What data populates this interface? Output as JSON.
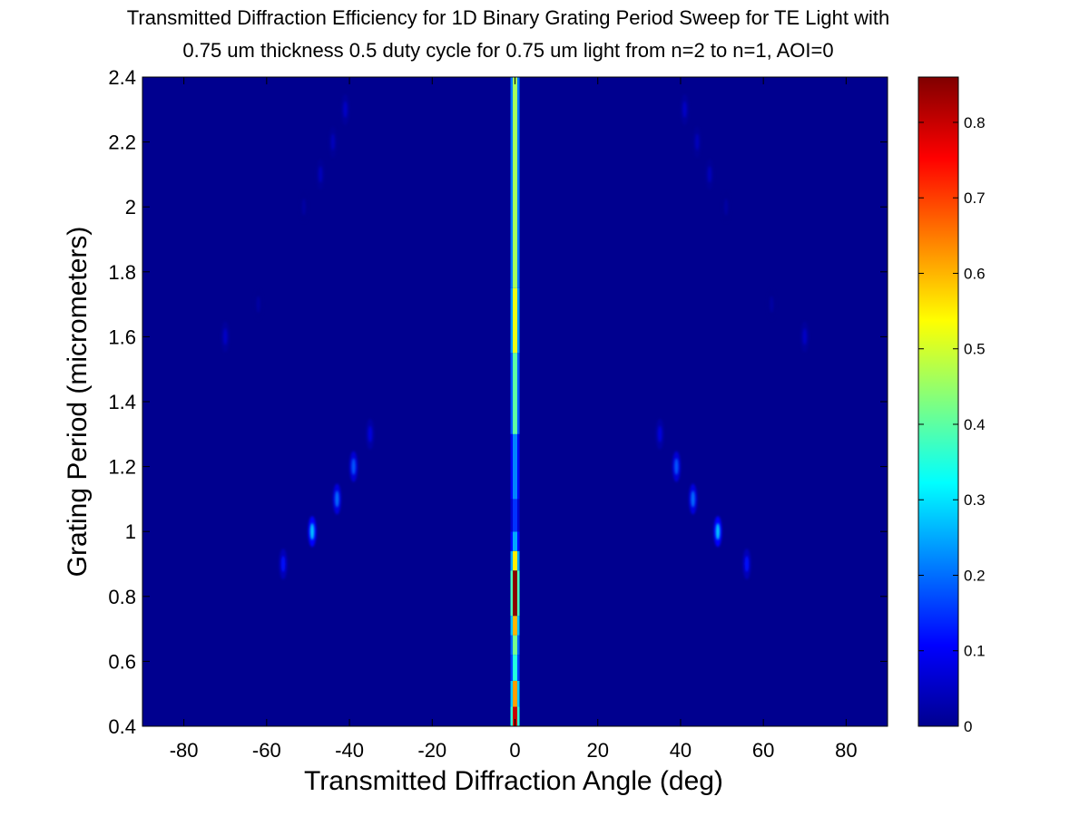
{
  "chart_data": {
    "type": "heatmap",
    "title": "Transmitted Diffraction Efficiency for 1D Binary Grating Period Sweep for TE Light with",
    "subtitle": "0.75 um thickness 0.5 duty cycle for 0.75 um light from n=2 to n=1, AOI=0",
    "xlabel": "Transmitted Diffraction Angle (deg)",
    "ylabel": "Grating Period (micrometers)",
    "xlim": [
      -90,
      90
    ],
    "ylim": [
      0.4,
      2.4
    ],
    "x_ticks": [
      -80,
      -60,
      -40,
      -20,
      0,
      20,
      40,
      60,
      80
    ],
    "x_tick_labels": [
      "-80",
      "-60",
      "-40",
      "-20",
      "0",
      "20",
      "40",
      "60",
      "80"
    ],
    "y_ticks": [
      0.4,
      0.6,
      0.8,
      1.0,
      1.2,
      1.4,
      1.6,
      1.8,
      2.0,
      2.2,
      2.4
    ],
    "y_tick_labels": [
      "0.4",
      "0.6",
      "0.8",
      "1",
      "1.2",
      "1.4",
      "1.6",
      "1.8",
      "2",
      "2.2",
      "2.4"
    ],
    "colorbar": {
      "colormap": "jet",
      "range": [
        0,
        0.86
      ],
      "ticks": [
        0,
        0.1,
        0.2,
        0.3,
        0.4,
        0.5,
        0.6,
        0.7,
        0.8
      ],
      "tick_labels": [
        "0",
        "0.1",
        "0.2",
        "0.3",
        "0.4",
        "0.5",
        "0.6",
        "0.7",
        "0.8"
      ]
    },
    "background_color": "#00008f",
    "zero_order": [
      {
        "y_from": 0.4,
        "y_to": 0.46,
        "value": 0.8
      },
      {
        "y_from": 0.46,
        "y_to": 0.54,
        "value": 0.62
      },
      {
        "y_from": 0.54,
        "y_to": 0.62,
        "value": 0.35
      },
      {
        "y_from": 0.62,
        "y_to": 0.68,
        "value": 0.42
      },
      {
        "y_from": 0.68,
        "y_to": 0.74,
        "value": 0.6
      },
      {
        "y_from": 0.74,
        "y_to": 0.88,
        "value": 0.85
      },
      {
        "y_from": 0.88,
        "y_to": 0.94,
        "value": 0.55
      },
      {
        "y_from": 0.94,
        "y_to": 1.0,
        "value": 0.25
      },
      {
        "y_from": 1.0,
        "y_to": 1.1,
        "value": 0.15
      },
      {
        "y_from": 1.1,
        "y_to": 1.3,
        "value": 0.22
      },
      {
        "y_from": 1.3,
        "y_to": 1.55,
        "value": 0.4
      },
      {
        "y_from": 1.55,
        "y_to": 1.75,
        "value": 0.52
      },
      {
        "y_from": 1.75,
        "y_to": 2.4,
        "value": 0.46
      }
    ],
    "spots": [
      {
        "x": -56,
        "y": 0.9,
        "value": 0.12
      },
      {
        "x": -49,
        "y": 1.0,
        "value": 0.28
      },
      {
        "x": -43,
        "y": 1.1,
        "value": 0.2
      },
      {
        "x": -39,
        "y": 1.2,
        "value": 0.18
      },
      {
        "x": -35,
        "y": 1.3,
        "value": 0.08
      },
      {
        "x": -70,
        "y": 1.6,
        "value": 0.06
      },
      {
        "x": -62,
        "y": 1.7,
        "value": 0.03
      },
      {
        "x": -51,
        "y": 2.0,
        "value": 0.03
      },
      {
        "x": -47,
        "y": 2.1,
        "value": 0.05
      },
      {
        "x": -44,
        "y": 2.2,
        "value": 0.05
      },
      {
        "x": -41,
        "y": 2.3,
        "value": 0.06
      },
      {
        "x": 56,
        "y": 0.9,
        "value": 0.12
      },
      {
        "x": 49,
        "y": 1.0,
        "value": 0.28
      },
      {
        "x": 43,
        "y": 1.1,
        "value": 0.2
      },
      {
        "x": 39,
        "y": 1.2,
        "value": 0.18
      },
      {
        "x": 35,
        "y": 1.3,
        "value": 0.08
      },
      {
        "x": 70,
        "y": 1.6,
        "value": 0.06
      },
      {
        "x": 62,
        "y": 1.7,
        "value": 0.03
      },
      {
        "x": 51,
        "y": 2.0,
        "value": 0.03
      },
      {
        "x": 47,
        "y": 2.1,
        "value": 0.05
      },
      {
        "x": 44,
        "y": 2.2,
        "value": 0.05
      },
      {
        "x": 41,
        "y": 2.3,
        "value": 0.06
      }
    ]
  }
}
